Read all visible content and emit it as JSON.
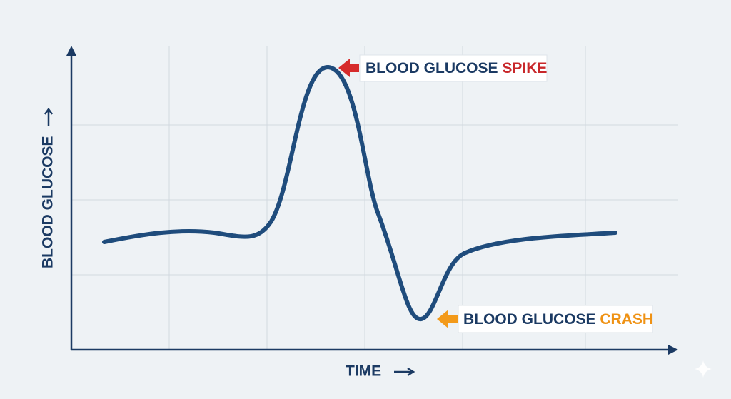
{
  "axes": {
    "y_label": "BLOOD GLUCOSE",
    "x_label": "TIME"
  },
  "annotations": [
    {
      "text": "BLOOD GLUCOSE",
      "emphasis": "SPIKE"
    },
    {
      "text": "BLOOD GLUCOSE",
      "emphasis": "CRASH"
    }
  ]
}
